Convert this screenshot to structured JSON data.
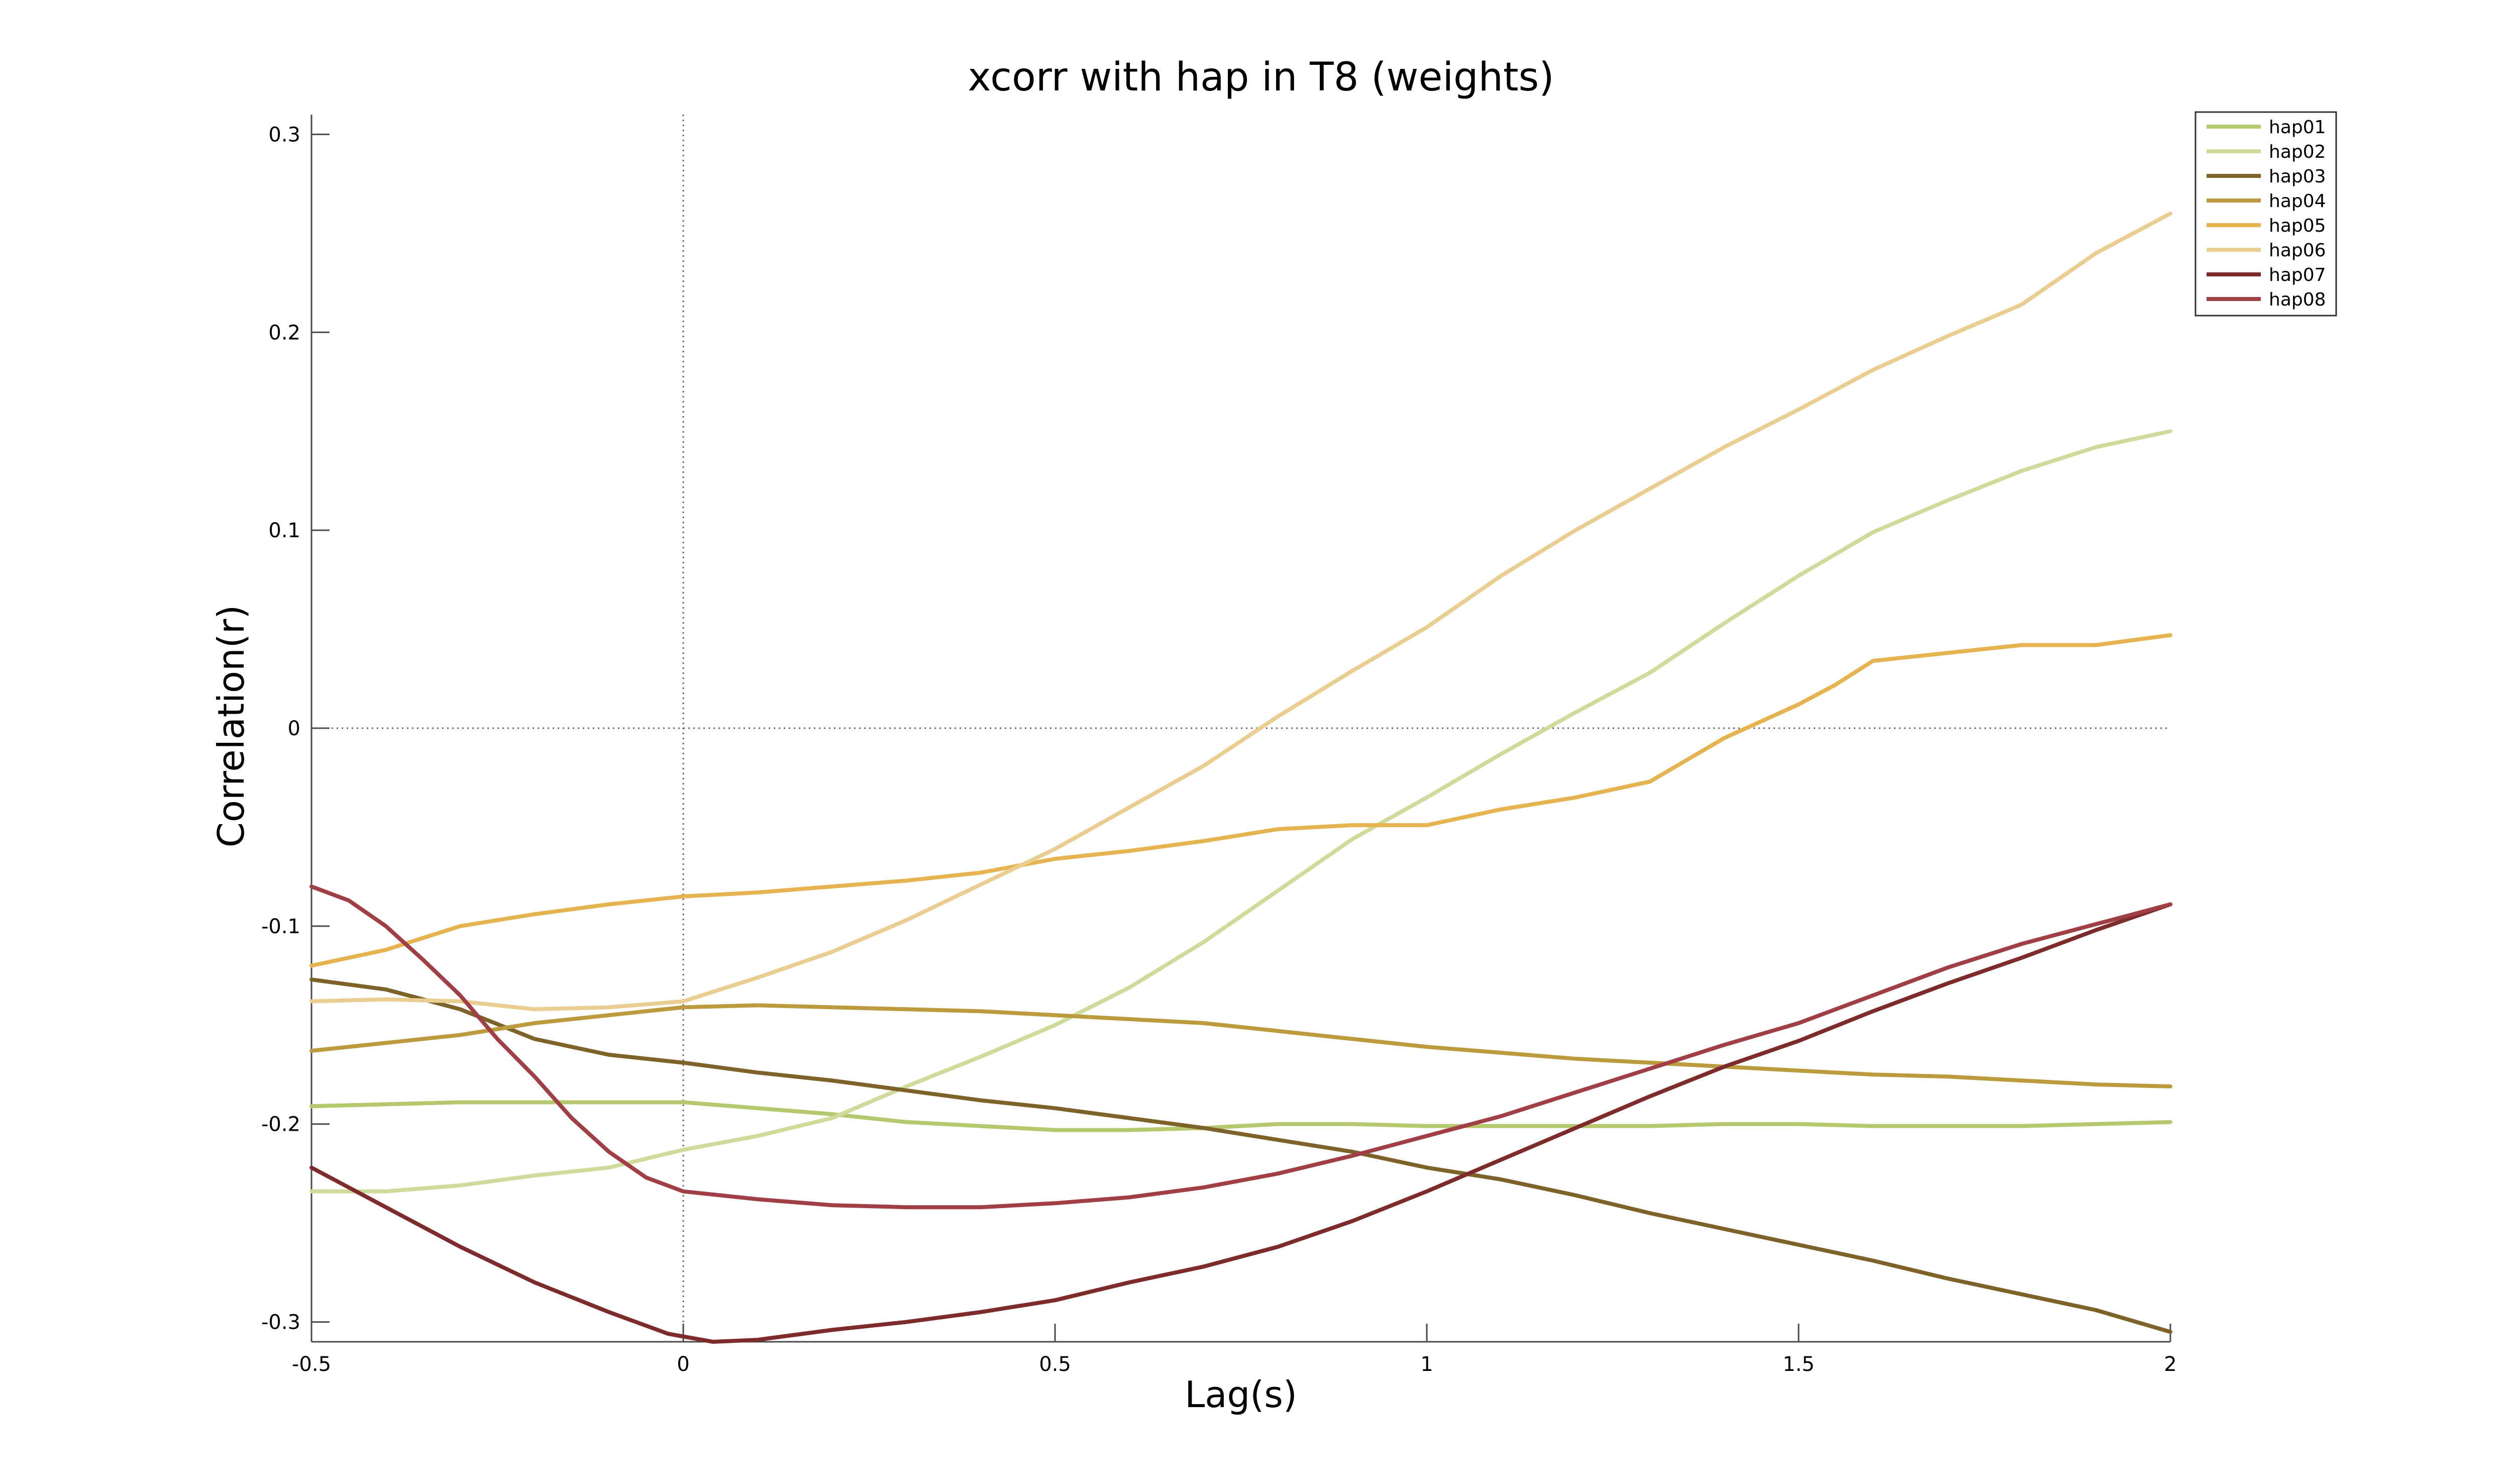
{
  "chart_data": {
    "type": "line",
    "title": "xcorr with hap in T8 (weights)",
    "xlabel": "Lag(s)",
    "ylabel": "Correlation(r)",
    "xlim": [
      -0.5,
      2
    ],
    "ylim": [
      -0.31,
      0.31
    ],
    "xticks": [
      -0.5,
      0,
      0.5,
      1,
      1.5,
      2
    ],
    "xtick_labels": [
      "-0.5",
      "0",
      "0.5",
      "1",
      "1.5",
      "2"
    ],
    "yticks": [
      -0.3,
      -0.2,
      -0.1,
      0,
      0.1,
      0.2,
      0.3
    ],
    "ytick_labels": [
      "-0.3",
      "-0.2",
      "-0.1",
      "0",
      "0.1",
      "0.2",
      "0.3"
    ],
    "reference_lines": {
      "x": 0,
      "y": 0
    },
    "grid": false,
    "legend_position": "top-right",
    "series": [
      {
        "name": "hap01",
        "color": "#b4c96d",
        "x": [
          -0.5,
          -0.4,
          -0.3,
          -0.2,
          -0.1,
          0,
          0.1,
          0.2,
          0.3,
          0.4,
          0.5,
          0.6,
          0.7,
          0.8,
          0.9,
          1,
          1.1,
          1.2,
          1.3,
          1.4,
          1.5,
          1.6,
          1.7,
          1.8,
          1.9,
          2
        ],
        "y": [
          -0.191,
          -0.19,
          -0.189,
          -0.189,
          -0.189,
          -0.189,
          -0.192,
          -0.195,
          -0.199,
          -0.201,
          -0.203,
          -0.203,
          -0.202,
          -0.2,
          -0.2,
          -0.201,
          -0.201,
          -0.201,
          -0.201,
          -0.2,
          -0.2,
          -0.201,
          -0.201,
          -0.201,
          -0.2,
          -0.199
        ]
      },
      {
        "name": "hap02",
        "color": "#cfdb9b",
        "x": [
          -0.5,
          -0.4,
          -0.3,
          -0.2,
          -0.1,
          0,
          0.1,
          0.2,
          0.3,
          0.4,
          0.5,
          0.6,
          0.7,
          0.8,
          0.9,
          1,
          1.1,
          1.2,
          1.3,
          1.4,
          1.5,
          1.6,
          1.7,
          1.8,
          1.9,
          2
        ],
        "y": [
          -0.234,
          -0.234,
          -0.231,
          -0.226,
          -0.222,
          -0.213,
          -0.206,
          -0.197,
          -0.181,
          -0.166,
          -0.15,
          -0.131,
          -0.108,
          -0.082,
          -0.056,
          -0.035,
          -0.013,
          0.008,
          0.028,
          0.053,
          0.077,
          0.099,
          0.115,
          0.13,
          0.142,
          0.15
        ]
      },
      {
        "name": "hap03",
        "color": "#7d632a",
        "x": [
          -0.5,
          -0.4,
          -0.3,
          -0.2,
          -0.1,
          0,
          0.1,
          0.2,
          0.3,
          0.4,
          0.5,
          0.6,
          0.7,
          0.8,
          0.9,
          1,
          1.1,
          1.2,
          1.3,
          1.4,
          1.5,
          1.6,
          1.7,
          1.8,
          1.9,
          2
        ],
        "y": [
          -0.127,
          -0.132,
          -0.142,
          -0.157,
          -0.165,
          -0.169,
          -0.174,
          -0.178,
          -0.183,
          -0.188,
          -0.192,
          -0.197,
          -0.202,
          -0.208,
          -0.214,
          -0.222,
          -0.228,
          -0.236,
          -0.245,
          -0.253,
          -0.261,
          -0.269,
          -0.278,
          -0.286,
          -0.294,
          -0.305
        ]
      },
      {
        "name": "hap04",
        "color": "#bb9b3e",
        "x": [
          -0.5,
          -0.4,
          -0.3,
          -0.2,
          -0.1,
          0,
          0.1,
          0.2,
          0.3,
          0.4,
          0.5,
          0.6,
          0.7,
          0.8,
          0.9,
          1,
          1.1,
          1.2,
          1.3,
          1.4,
          1.5,
          1.6,
          1.7,
          1.8,
          1.9,
          2
        ],
        "y": [
          -0.163,
          -0.159,
          -0.155,
          -0.149,
          -0.145,
          -0.141,
          -0.14,
          -0.141,
          -0.142,
          -0.143,
          -0.145,
          -0.147,
          -0.149,
          -0.153,
          -0.157,
          -0.161,
          -0.164,
          -0.167,
          -0.169,
          -0.171,
          -0.173,
          -0.175,
          -0.176,
          -0.178,
          -0.18,
          -0.181
        ]
      },
      {
        "name": "hap05",
        "color": "#e5b34f",
        "x": [
          -0.5,
          -0.4,
          -0.3,
          -0.2,
          -0.1,
          0,
          0.1,
          0.2,
          0.3,
          0.4,
          0.5,
          0.6,
          0.7,
          0.8,
          0.9,
          1,
          1.1,
          1.2,
          1.3,
          1.4,
          1.5,
          1.55,
          1.6,
          1.7,
          1.8,
          1.9,
          2
        ],
        "y": [
          -0.12,
          -0.112,
          -0.1,
          -0.094,
          -0.089,
          -0.085,
          -0.083,
          -0.08,
          -0.077,
          -0.073,
          -0.066,
          -0.062,
          -0.057,
          -0.051,
          -0.049,
          -0.049,
          -0.041,
          -0.035,
          -0.027,
          -0.005,
          0.012,
          0.022,
          0.034,
          0.038,
          0.042,
          0.042,
          0.047
        ]
      },
      {
        "name": "hap06",
        "color": "#e9cd91",
        "x": [
          -0.5,
          -0.4,
          -0.3,
          -0.2,
          -0.1,
          0,
          0.1,
          0.2,
          0.3,
          0.4,
          0.5,
          0.6,
          0.7,
          0.8,
          0.9,
          1,
          1.1,
          1.2,
          1.3,
          1.4,
          1.5,
          1.6,
          1.7,
          1.8,
          1.9,
          2
        ],
        "y": [
          -0.138,
          -0.137,
          -0.138,
          -0.142,
          -0.141,
          -0.138,
          -0.126,
          -0.113,
          -0.097,
          -0.079,
          -0.061,
          -0.04,
          -0.019,
          0.006,
          0.029,
          0.051,
          0.077,
          0.1,
          0.121,
          0.142,
          0.161,
          0.181,
          0.198,
          0.214,
          0.24,
          0.26
        ]
      },
      {
        "name": "hap07",
        "color": "#7d2b2b",
        "x": [
          -0.5,
          -0.4,
          -0.3,
          -0.2,
          -0.1,
          -0.02,
          0.04,
          0.1,
          0.2,
          0.3,
          0.4,
          0.5,
          0.6,
          0.7,
          0.8,
          0.9,
          1,
          1.1,
          1.2,
          1.3,
          1.4,
          1.5,
          1.6,
          1.7,
          1.8,
          1.9,
          2
        ],
        "y": [
          -0.222,
          -0.242,
          -0.262,
          -0.28,
          -0.295,
          -0.306,
          -0.31,
          -0.309,
          -0.304,
          -0.3,
          -0.295,
          -0.289,
          -0.28,
          -0.272,
          -0.262,
          -0.249,
          -0.234,
          -0.218,
          -0.202,
          -0.186,
          -0.171,
          -0.158,
          -0.143,
          -0.129,
          -0.116,
          -0.102,
          -0.089
        ]
      },
      {
        "name": "hap08",
        "color": "#a13f46",
        "x": [
          -0.5,
          -0.45,
          -0.4,
          -0.35,
          -0.3,
          -0.25,
          -0.2,
          -0.15,
          -0.1,
          -0.05,
          0,
          0.1,
          0.2,
          0.3,
          0.4,
          0.5,
          0.6,
          0.7,
          0.8,
          0.9,
          1,
          1.1,
          1.2,
          1.3,
          1.4,
          1.5,
          1.6,
          1.7,
          1.8,
          1.9,
          2
        ],
        "y": [
          -0.08,
          -0.087,
          -0.1,
          -0.117,
          -0.135,
          -0.157,
          -0.176,
          -0.197,
          -0.214,
          -0.227,
          -0.234,
          -0.238,
          -0.241,
          -0.242,
          -0.242,
          -0.24,
          -0.237,
          -0.232,
          -0.225,
          -0.216,
          -0.206,
          -0.196,
          -0.184,
          -0.172,
          -0.16,
          -0.149,
          -0.135,
          -0.121,
          -0.109,
          -0.099,
          -0.089
        ]
      }
    ]
  }
}
